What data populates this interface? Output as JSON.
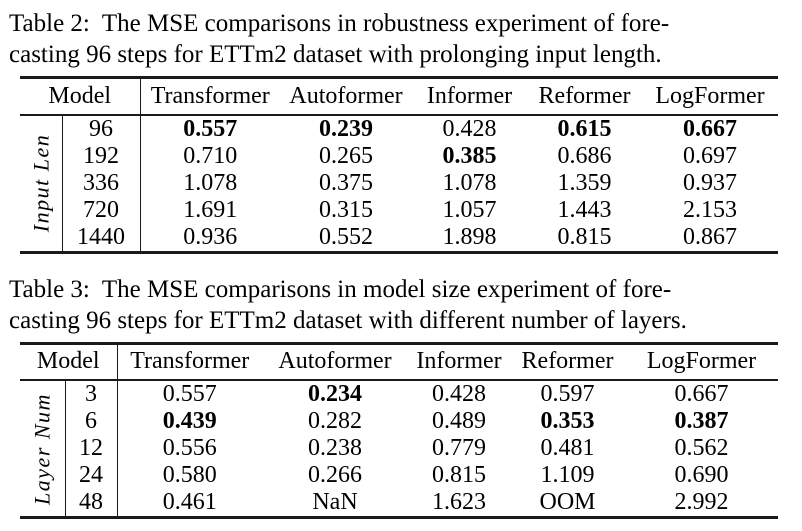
{
  "colors": {
    "background": "#ffffff",
    "text": "#000000",
    "rule": "#1a1a1a"
  },
  "tables": [
    {
      "caption_line1": "Table 2:  The MSE comparisons in robustness experiment of fore-",
      "caption_line2": "casting 96 steps for ETTm2 dataset with prolonging input length.",
      "row_group_label": "Input Len",
      "header": {
        "model": "Model",
        "columns": [
          "Transformer",
          "Autoformer",
          "Informer",
          "Reformer",
          "LogFormer"
        ]
      },
      "rows": [
        {
          "label": "96",
          "values": [
            {
              "text": "0.557",
              "bold": true
            },
            {
              "text": "0.239",
              "bold": true
            },
            {
              "text": "0.428",
              "bold": false
            },
            {
              "text": "0.615",
              "bold": true
            },
            {
              "text": "0.667",
              "bold": true
            }
          ]
        },
        {
          "label": "192",
          "values": [
            {
              "text": "0.710",
              "bold": false
            },
            {
              "text": "0.265",
              "bold": false
            },
            {
              "text": "0.385",
              "bold": true
            },
            {
              "text": "0.686",
              "bold": false
            },
            {
              "text": "0.697",
              "bold": false
            }
          ]
        },
        {
          "label": "336",
          "values": [
            {
              "text": "1.078",
              "bold": false
            },
            {
              "text": "0.375",
              "bold": false
            },
            {
              "text": "1.078",
              "bold": false
            },
            {
              "text": "1.359",
              "bold": false
            },
            {
              "text": "0.937",
              "bold": false
            }
          ]
        },
        {
          "label": "720",
          "values": [
            {
              "text": "1.691",
              "bold": false
            },
            {
              "text": "0.315",
              "bold": false
            },
            {
              "text": "1.057",
              "bold": false
            },
            {
              "text": "1.443",
              "bold": false
            },
            {
              "text": "2.153",
              "bold": false
            }
          ]
        },
        {
          "label": "1440",
          "values": [
            {
              "text": "0.936",
              "bold": false
            },
            {
              "text": "0.552",
              "bold": false
            },
            {
              "text": "1.898",
              "bold": false
            },
            {
              "text": "0.815",
              "bold": false
            },
            {
              "text": "0.867",
              "bold": false
            }
          ]
        }
      ]
    },
    {
      "caption_line1": "Table 3:  The MSE comparisons in model size experiment of fore-",
      "caption_line2": "casting 96 steps for ETTm2 dataset with different number of layers.",
      "row_group_label": "Layer Num",
      "header": {
        "model": "Model",
        "columns": [
          "Transformer",
          "Autoformer",
          "Informer",
          "Reformer",
          "LogFormer"
        ]
      },
      "rows": [
        {
          "label": "3",
          "values": [
            {
              "text": "0.557",
              "bold": false
            },
            {
              "text": "0.234",
              "bold": true
            },
            {
              "text": "0.428",
              "bold": false
            },
            {
              "text": "0.597",
              "bold": false
            },
            {
              "text": "0.667",
              "bold": false
            }
          ]
        },
        {
          "label": "6",
          "values": [
            {
              "text": "0.439",
              "bold": true
            },
            {
              "text": "0.282",
              "bold": false
            },
            {
              "text": "0.489",
              "bold": false
            },
            {
              "text": "0.353",
              "bold": true
            },
            {
              "text": "0.387",
              "bold": true
            }
          ]
        },
        {
          "label": "12",
          "values": [
            {
              "text": "0.556",
              "bold": false
            },
            {
              "text": "0.238",
              "bold": false
            },
            {
              "text": "0.779",
              "bold": false
            },
            {
              "text": "0.481",
              "bold": false
            },
            {
              "text": "0.562",
              "bold": false
            }
          ]
        },
        {
          "label": "24",
          "values": [
            {
              "text": "0.580",
              "bold": false
            },
            {
              "text": "0.266",
              "bold": false
            },
            {
              "text": "0.815",
              "bold": false
            },
            {
              "text": "1.109",
              "bold": false
            },
            {
              "text": "0.690",
              "bold": false
            }
          ]
        },
        {
          "label": "48",
          "values": [
            {
              "text": "0.461",
              "bold": false
            },
            {
              "text": "NaN",
              "bold": false
            },
            {
              "text": "1.623",
              "bold": false
            },
            {
              "text": "OOM",
              "bold": false
            },
            {
              "text": "2.992",
              "bold": false
            }
          ]
        }
      ]
    }
  ]
}
